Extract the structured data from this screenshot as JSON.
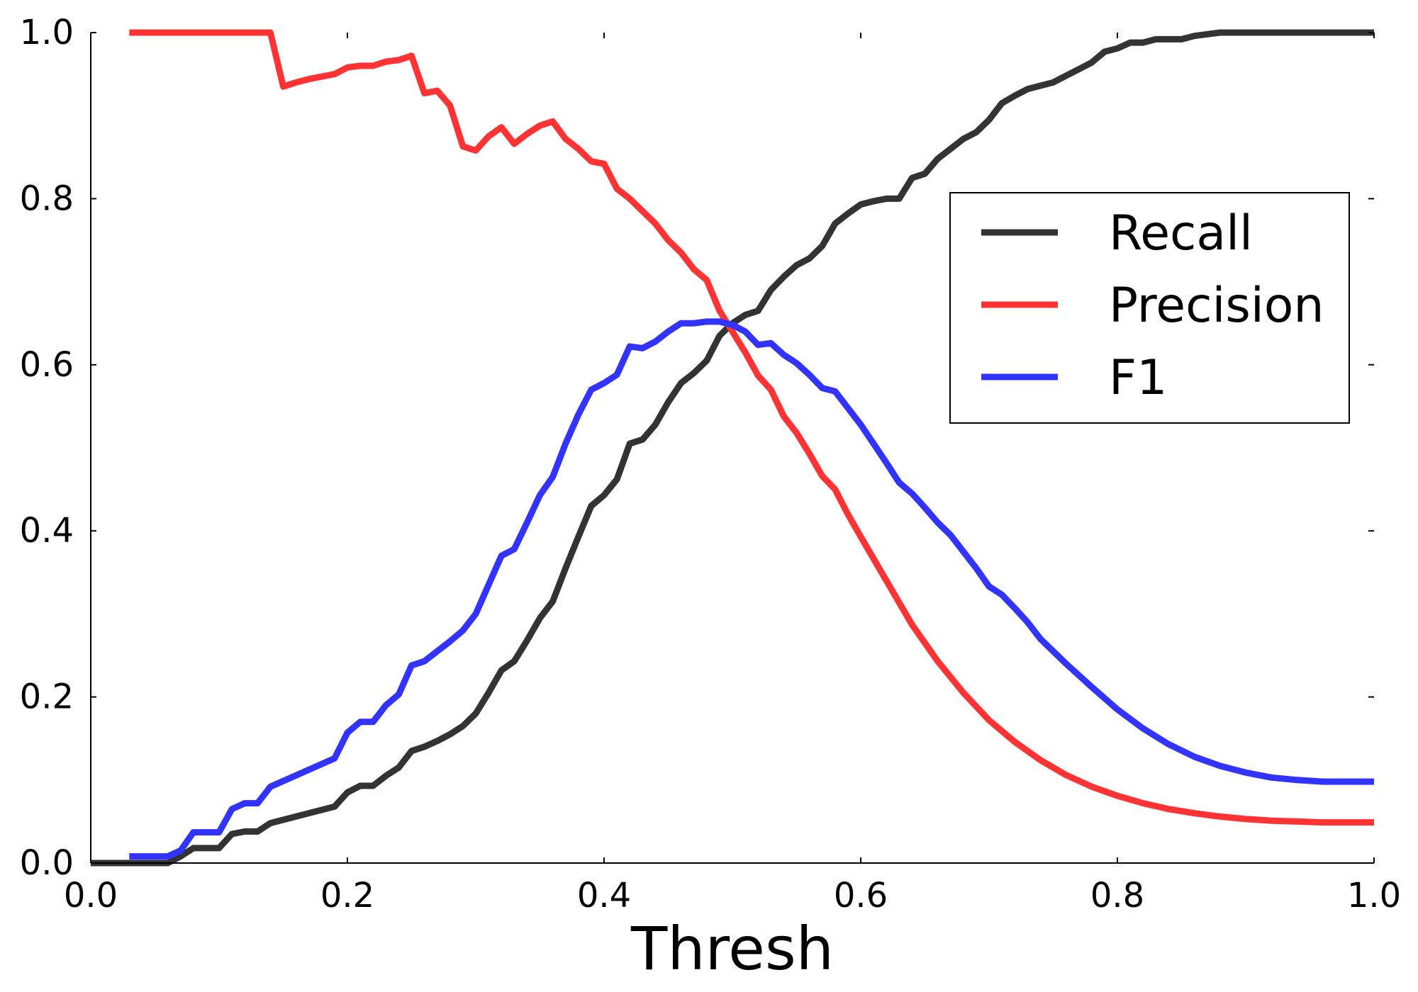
{
  "chart_data": {
    "type": "line",
    "title": "",
    "xlabel": "Thresh",
    "ylabel": "",
    "xlim": [
      0.0,
      1.0
    ],
    "ylim": [
      0.0,
      1.0
    ],
    "grid": false,
    "legend_position": "center-right",
    "xticks": [
      {
        "value": 0.0,
        "label": "0.0"
      },
      {
        "value": 0.2,
        "label": "0.2"
      },
      {
        "value": 0.4,
        "label": "0.4"
      },
      {
        "value": 0.6,
        "label": "0.6"
      },
      {
        "value": 0.8,
        "label": "0.8"
      },
      {
        "value": 1.0,
        "label": "1.0"
      }
    ],
    "yticks": [
      {
        "value": 0.0,
        "label": "0.0"
      },
      {
        "value": 0.2,
        "label": "0.2"
      },
      {
        "value": 0.4,
        "label": "0.4"
      },
      {
        "value": 0.6,
        "label": "0.6"
      },
      {
        "value": 0.8,
        "label": "0.8"
      },
      {
        "value": 1.0,
        "label": "1.0"
      }
    ],
    "series": [
      {
        "name": "Recall",
        "color": "#333333",
        "x": [
          0.0,
          0.06,
          0.07,
          0.08,
          0.1,
          0.11,
          0.12,
          0.13,
          0.14,
          0.19,
          0.2,
          0.21,
          0.22,
          0.23,
          0.24,
          0.25,
          0.26,
          0.27,
          0.28,
          0.29,
          0.3,
          0.31,
          0.32,
          0.33,
          0.34,
          0.35,
          0.36,
          0.37,
          0.38,
          0.39,
          0.4,
          0.41,
          0.42,
          0.43,
          0.44,
          0.45,
          0.46,
          0.47,
          0.48,
          0.49,
          0.5,
          0.51,
          0.52,
          0.53,
          0.54,
          0.55,
          0.56,
          0.57,
          0.58,
          0.59,
          0.6,
          0.61,
          0.62,
          0.63,
          0.64,
          0.65,
          0.66,
          0.67,
          0.68,
          0.69,
          0.7,
          0.71,
          0.72,
          0.73,
          0.74,
          0.75,
          0.76,
          0.77,
          0.78,
          0.79,
          0.8,
          0.81,
          0.82,
          0.83,
          0.84,
          0.85,
          0.86,
          0.87,
          0.88,
          1.0
        ],
        "values": [
          0.0,
          0.0,
          0.008,
          0.018,
          0.018,
          0.035,
          0.038,
          0.038,
          0.048,
          0.068,
          0.085,
          0.093,
          0.093,
          0.105,
          0.115,
          0.135,
          0.14,
          0.147,
          0.155,
          0.165,
          0.18,
          0.205,
          0.232,
          0.243,
          0.268,
          0.295,
          0.315,
          0.355,
          0.393,
          0.43,
          0.443,
          0.462,
          0.505,
          0.51,
          0.528,
          0.555,
          0.578,
          0.59,
          0.605,
          0.635,
          0.65,
          0.66,
          0.665,
          0.69,
          0.706,
          0.72,
          0.728,
          0.743,
          0.77,
          0.782,
          0.793,
          0.797,
          0.8,
          0.8,
          0.825,
          0.83,
          0.848,
          0.86,
          0.872,
          0.88,
          0.895,
          0.915,
          0.924,
          0.932,
          0.936,
          0.94,
          0.948,
          0.956,
          0.964,
          0.977,
          0.981,
          0.988,
          0.988,
          0.992,
          0.992,
          0.992,
          0.996,
          0.998,
          1.0,
          1.0
        ]
      },
      {
        "name": "Precision",
        "color": "#ff3333",
        "x": [
          0.03,
          0.14,
          0.15,
          0.16,
          0.17,
          0.18,
          0.19,
          0.2,
          0.21,
          0.22,
          0.23,
          0.24,
          0.25,
          0.26,
          0.27,
          0.28,
          0.29,
          0.3,
          0.31,
          0.32,
          0.33,
          0.34,
          0.35,
          0.36,
          0.37,
          0.38,
          0.39,
          0.4,
          0.41,
          0.42,
          0.43,
          0.44,
          0.45,
          0.46,
          0.47,
          0.48,
          0.49,
          0.5,
          0.51,
          0.52,
          0.53,
          0.54,
          0.55,
          0.56,
          0.57,
          0.58,
          0.59,
          0.6,
          0.62,
          0.64,
          0.66,
          0.68,
          0.7,
          0.72,
          0.74,
          0.76,
          0.78,
          0.8,
          0.82,
          0.84,
          0.86,
          0.88,
          0.9,
          0.92,
          0.94,
          0.96,
          0.98,
          1.0
        ],
        "values": [
          1.0,
          1.0,
          0.935,
          0.94,
          0.944,
          0.947,
          0.95,
          0.958,
          0.96,
          0.96,
          0.965,
          0.967,
          0.972,
          0.927,
          0.93,
          0.912,
          0.863,
          0.858,
          0.875,
          0.886,
          0.866,
          0.878,
          0.888,
          0.893,
          0.872,
          0.86,
          0.845,
          0.842,
          0.812,
          0.8,
          0.785,
          0.77,
          0.75,
          0.735,
          0.715,
          0.702,
          0.665,
          0.64,
          0.615,
          0.587,
          0.57,
          0.538,
          0.518,
          0.493,
          0.466,
          0.45,
          0.42,
          0.393,
          0.34,
          0.287,
          0.243,
          0.205,
          0.172,
          0.146,
          0.124,
          0.106,
          0.092,
          0.081,
          0.072,
          0.065,
          0.06,
          0.056,
          0.053,
          0.051,
          0.05,
          0.049,
          0.049,
          0.049
        ]
      },
      {
        "name": "F1",
        "color": "#3333ff",
        "x": [
          0.03,
          0.06,
          0.07,
          0.08,
          0.1,
          0.11,
          0.12,
          0.13,
          0.14,
          0.19,
          0.2,
          0.21,
          0.22,
          0.23,
          0.24,
          0.25,
          0.26,
          0.27,
          0.28,
          0.29,
          0.3,
          0.31,
          0.32,
          0.33,
          0.34,
          0.35,
          0.36,
          0.37,
          0.38,
          0.39,
          0.4,
          0.41,
          0.42,
          0.43,
          0.44,
          0.45,
          0.46,
          0.47,
          0.48,
          0.49,
          0.5,
          0.51,
          0.52,
          0.53,
          0.54,
          0.55,
          0.56,
          0.57,
          0.58,
          0.59,
          0.6,
          0.61,
          0.62,
          0.63,
          0.64,
          0.65,
          0.66,
          0.67,
          0.68,
          0.69,
          0.7,
          0.71,
          0.72,
          0.73,
          0.74,
          0.75,
          0.76,
          0.78,
          0.8,
          0.82,
          0.84,
          0.86,
          0.88,
          0.9,
          0.92,
          0.94,
          0.96,
          0.98,
          1.0
        ],
        "values": [
          0.008,
          0.008,
          0.015,
          0.037,
          0.037,
          0.065,
          0.072,
          0.072,
          0.092,
          0.126,
          0.157,
          0.17,
          0.17,
          0.19,
          0.203,
          0.238,
          0.243,
          0.255,
          0.267,
          0.28,
          0.3,
          0.335,
          0.37,
          0.378,
          0.41,
          0.443,
          0.465,
          0.505,
          0.54,
          0.57,
          0.578,
          0.588,
          0.622,
          0.62,
          0.628,
          0.64,
          0.65,
          0.65,
          0.652,
          0.652,
          0.648,
          0.64,
          0.624,
          0.626,
          0.612,
          0.602,
          0.588,
          0.572,
          0.568,
          0.548,
          0.528,
          0.505,
          0.482,
          0.458,
          0.445,
          0.428,
          0.41,
          0.395,
          0.375,
          0.355,
          0.333,
          0.323,
          0.307,
          0.29,
          0.27,
          0.255,
          0.24,
          0.212,
          0.185,
          0.162,
          0.143,
          0.128,
          0.117,
          0.109,
          0.103,
          0.1,
          0.098,
          0.098,
          0.098
        ]
      }
    ]
  }
}
